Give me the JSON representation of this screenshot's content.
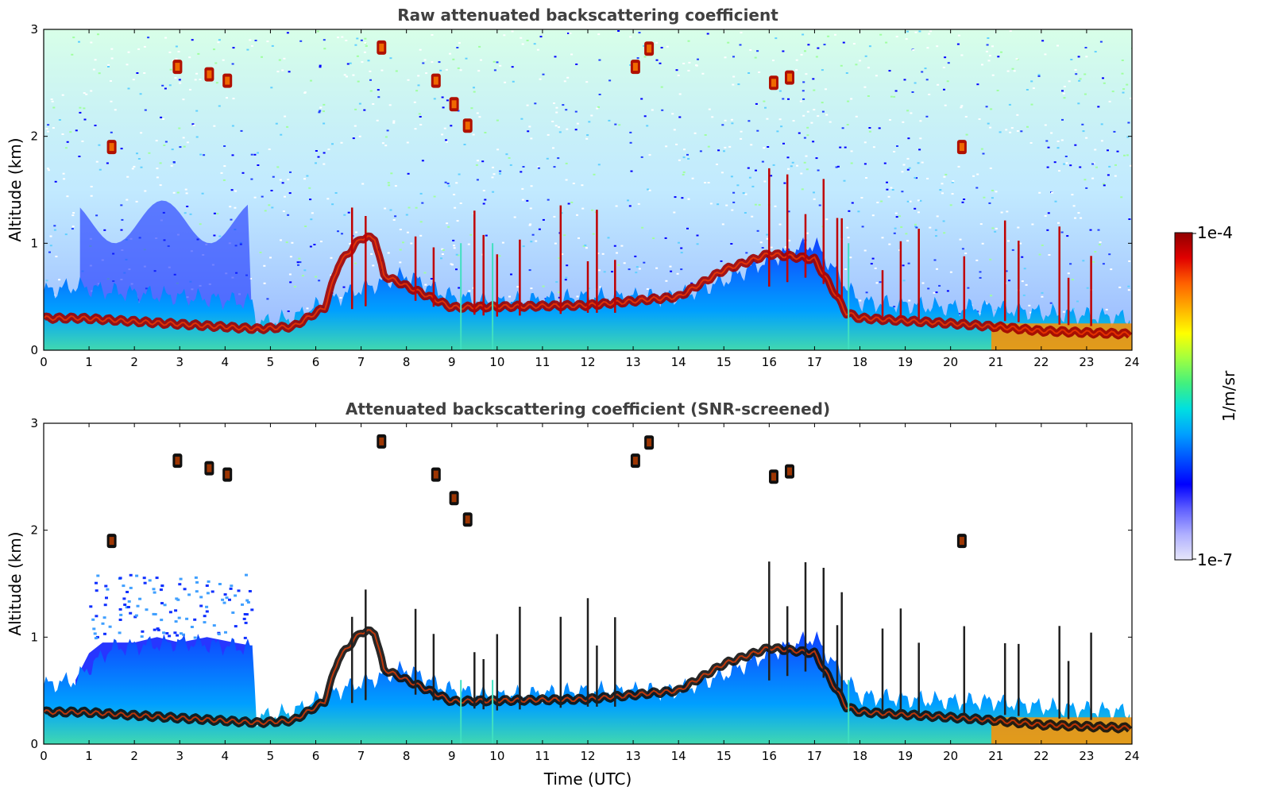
{
  "chart_data": [
    {
      "type": "heatmap",
      "title": "Raw attenuated backscattering coefficient",
      "xlabel": "",
      "ylabel": "Altitude (km)",
      "xlim": [
        0,
        24
      ],
      "ylim": [
        0,
        3
      ],
      "x_ticks": [
        "0",
        "1",
        "2",
        "3",
        "4",
        "5",
        "6",
        "7",
        "8",
        "9",
        "10",
        "11",
        "12",
        "13",
        "14",
        "15",
        "16",
        "17",
        "18",
        "19",
        "20",
        "21",
        "22",
        "23",
        "24"
      ],
      "y_ticks": [
        "0",
        "1",
        "2",
        "3"
      ],
      "boundary_layer_top_km": [
        [
          0,
          0.55
        ],
        [
          0.7,
          0.6
        ],
        [
          1.5,
          0.55
        ],
        [
          3,
          0.5
        ],
        [
          4.6,
          0.45
        ],
        [
          4.7,
          0.25
        ],
        [
          5.5,
          0.3
        ],
        [
          6.2,
          0.45
        ],
        [
          6.8,
          0.55
        ],
        [
          8,
          0.7
        ],
        [
          9,
          0.5
        ],
        [
          10,
          0.45
        ],
        [
          12,
          0.5
        ],
        [
          14,
          0.5
        ],
        [
          15,
          0.65
        ],
        [
          16,
          0.85
        ],
        [
          17,
          1.0
        ],
        [
          17.7,
          0.6
        ],
        [
          18,
          0.45
        ],
        [
          20,
          0.4
        ],
        [
          21,
          0.4
        ],
        [
          22,
          0.35
        ],
        [
          24,
          0.3
        ]
      ],
      "aerosol_layer_km": [
        [
          0,
          0.3
        ],
        [
          0.8,
          0.3
        ],
        [
          4.7,
          0.2
        ],
        [
          5.5,
          0.22
        ],
        [
          6.2,
          0.4
        ],
        [
          6.5,
          0.8
        ],
        [
          7,
          1.05
        ],
        [
          7.3,
          1.05
        ],
        [
          7.5,
          0.7
        ],
        [
          8.5,
          0.5
        ],
        [
          9,
          0.4
        ],
        [
          12,
          0.42
        ],
        [
          14,
          0.5
        ],
        [
          15,
          0.75
        ],
        [
          16,
          0.9
        ],
        [
          17,
          0.85
        ],
        [
          17.7,
          0.35
        ],
        [
          18,
          0.3
        ],
        [
          20,
          0.25
        ],
        [
          21,
          0.22
        ],
        [
          22,
          0.18
        ],
        [
          24,
          0.15
        ]
      ],
      "clouds": [
        {
          "t": 2.95,
          "alt": 2.65
        },
        {
          "t": 3.65,
          "alt": 2.58
        },
        {
          "t": 4.05,
          "alt": 2.52
        },
        {
          "t": 1.5,
          "alt": 1.9
        },
        {
          "t": 7.45,
          "alt": 2.83
        },
        {
          "t": 8.65,
          "alt": 2.52
        },
        {
          "t": 9.05,
          "alt": 2.3
        },
        {
          "t": 9.35,
          "alt": 2.1
        },
        {
          "t": 13.05,
          "alt": 2.65
        },
        {
          "t": 13.35,
          "alt": 2.82
        },
        {
          "t": 16.1,
          "alt": 2.5
        },
        {
          "t": 16.45,
          "alt": 2.55
        },
        {
          "t": 20.25,
          "alt": 1.9
        }
      ]
    },
    {
      "type": "heatmap",
      "title": "Attenuated backscattering coefficient (SNR-screened)",
      "xlabel": "Time (UTC)",
      "ylabel": "Altitude (km)",
      "xlim": [
        0,
        24
      ],
      "ylim": [
        0,
        3
      ],
      "x_ticks": [
        "0",
        "1",
        "2",
        "3",
        "4",
        "5",
        "6",
        "7",
        "8",
        "9",
        "10",
        "11",
        "12",
        "13",
        "14",
        "15",
        "16",
        "17",
        "18",
        "19",
        "20",
        "21",
        "22",
        "23",
        "24"
      ],
      "y_ticks": [
        "0",
        "1",
        "2",
        "3"
      ],
      "boundary_layer_top_km": [
        [
          0,
          0.55
        ],
        [
          0.7,
          0.6
        ],
        [
          1.5,
          0.9
        ],
        [
          3,
          0.95
        ],
        [
          4.6,
          0.9
        ],
        [
          4.7,
          0.25
        ],
        [
          5.5,
          0.3
        ],
        [
          6.2,
          0.45
        ],
        [
          6.8,
          0.55
        ],
        [
          8,
          0.7
        ],
        [
          9,
          0.5
        ],
        [
          10,
          0.45
        ],
        [
          12,
          0.5
        ],
        [
          14,
          0.5
        ],
        [
          15,
          0.65
        ],
        [
          16,
          0.85
        ],
        [
          17,
          1.0
        ],
        [
          17.7,
          0.6
        ],
        [
          18,
          0.45
        ],
        [
          20,
          0.4
        ],
        [
          21,
          0.4
        ],
        [
          22,
          0.35
        ],
        [
          24,
          0.3
        ]
      ],
      "aerosol_layer_km": [
        [
          0,
          0.3
        ],
        [
          0.8,
          0.3
        ],
        [
          4.7,
          0.2
        ],
        [
          5.5,
          0.22
        ],
        [
          6.2,
          0.4
        ],
        [
          6.5,
          0.8
        ],
        [
          7,
          1.05
        ],
        [
          7.3,
          1.05
        ],
        [
          7.5,
          0.7
        ],
        [
          8.5,
          0.5
        ],
        [
          9,
          0.4
        ],
        [
          12,
          0.42
        ],
        [
          14,
          0.5
        ],
        [
          15,
          0.75
        ],
        [
          16,
          0.9
        ],
        [
          17,
          0.85
        ],
        [
          17.7,
          0.35
        ],
        [
          18,
          0.3
        ],
        [
          20,
          0.25
        ],
        [
          21,
          0.22
        ],
        [
          22,
          0.18
        ],
        [
          24,
          0.15
        ]
      ],
      "clouds": [
        {
          "t": 2.95,
          "alt": 2.65
        },
        {
          "t": 3.65,
          "alt": 2.58
        },
        {
          "t": 4.05,
          "alt": 2.52
        },
        {
          "t": 1.5,
          "alt": 1.9
        },
        {
          "t": 7.45,
          "alt": 2.83
        },
        {
          "t": 8.65,
          "alt": 2.52
        },
        {
          "t": 9.05,
          "alt": 2.3
        },
        {
          "t": 9.35,
          "alt": 2.1
        },
        {
          "t": 13.05,
          "alt": 2.65
        },
        {
          "t": 13.35,
          "alt": 2.82
        },
        {
          "t": 16.1,
          "alt": 2.5
        },
        {
          "t": 16.45,
          "alt": 2.55
        },
        {
          "t": 20.25,
          "alt": 1.9
        }
      ]
    }
  ],
  "colorbar": {
    "label": "1/m/sr",
    "max_label": "1e-4",
    "min_label": "1e-7",
    "colors": [
      "#e6e6fa",
      "#b0b0ff",
      "#6060ff",
      "#0000ff",
      "#0050ff",
      "#00a0ff",
      "#00e0e0",
      "#40f080",
      "#a0ff40",
      "#ffff00",
      "#ffb000",
      "#ff6000",
      "#e00000",
      "#900000"
    ]
  }
}
